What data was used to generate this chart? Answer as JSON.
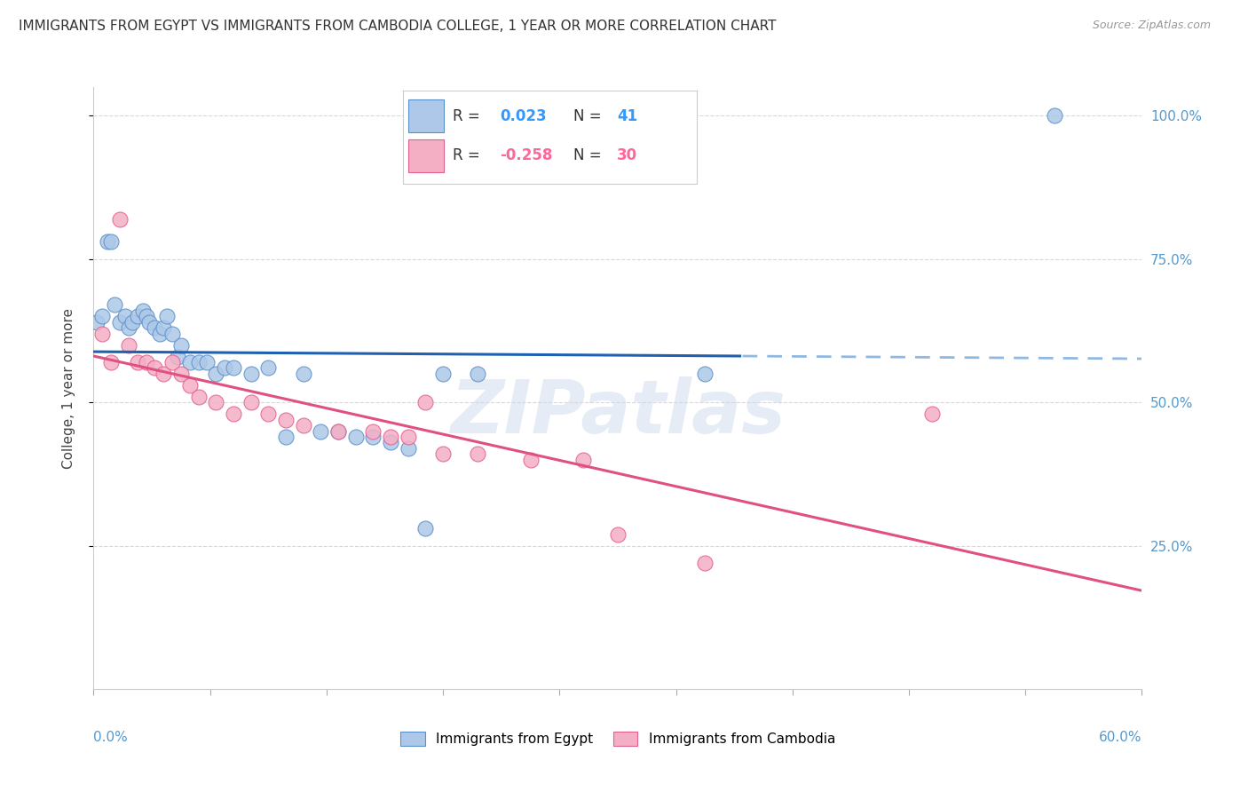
{
  "title": "IMMIGRANTS FROM EGYPT VS IMMIGRANTS FROM CAMBODIA COLLEGE, 1 YEAR OR MORE CORRELATION CHART",
  "source": "Source: ZipAtlas.com",
  "ylabel": "College, 1 year or more",
  "watermark": "ZIPatlas",
  "legend_egypt_R": "0.023",
  "legend_egypt_N": "41",
  "legend_cambodia_R": "-0.258",
  "legend_cambodia_N": "30",
  "egypt_x": [
    0.2,
    0.5,
    0.8,
    1.0,
    1.2,
    1.5,
    1.8,
    2.0,
    2.2,
    2.5,
    2.8,
    3.0,
    3.2,
    3.5,
    3.8,
    4.0,
    4.2,
    4.5,
    4.8,
    5.0,
    5.5,
    6.0,
    6.5,
    7.0,
    7.5,
    8.0,
    9.0,
    10.0,
    11.0,
    12.0,
    13.0,
    14.0,
    15.0,
    16.0,
    17.0,
    18.0,
    19.0,
    20.0,
    22.0,
    35.0,
    55.0
  ],
  "egypt_y": [
    64.0,
    65.0,
    78.0,
    78.0,
    67.0,
    64.0,
    65.0,
    63.0,
    64.0,
    65.0,
    66.0,
    65.0,
    64.0,
    63.0,
    62.0,
    63.0,
    65.0,
    62.0,
    58.0,
    60.0,
    57.0,
    57.0,
    57.0,
    55.0,
    56.0,
    56.0,
    55.0,
    56.0,
    44.0,
    55.0,
    45.0,
    45.0,
    44.0,
    44.0,
    43.0,
    42.0,
    28.0,
    55.0,
    55.0,
    55.0,
    100.0
  ],
  "cambodia_x": [
    0.5,
    1.0,
    1.5,
    2.0,
    2.5,
    3.0,
    3.5,
    4.0,
    4.5,
    5.0,
    5.5,
    6.0,
    7.0,
    8.0,
    9.0,
    10.0,
    11.0,
    12.0,
    14.0,
    16.0,
    17.0,
    18.0,
    19.0,
    20.0,
    22.0,
    25.0,
    28.0,
    30.0,
    35.0,
    48.0
  ],
  "cambodia_y": [
    62.0,
    57.0,
    82.0,
    60.0,
    57.0,
    57.0,
    56.0,
    55.0,
    57.0,
    55.0,
    53.0,
    51.0,
    50.0,
    48.0,
    50.0,
    48.0,
    47.0,
    46.0,
    45.0,
    45.0,
    44.0,
    44.0,
    50.0,
    41.0,
    41.0,
    40.0,
    40.0,
    27.0,
    22.0,
    48.0
  ],
  "egypt_color": "#adc8e8",
  "cambodia_color": "#f4afc4",
  "egypt_edge_color": "#5b8fc9",
  "cambodia_edge_color": "#e06090",
  "egypt_line_color": "#2060b0",
  "cambodia_line_color": "#e05080",
  "egypt_dash_color": "#90b8e0",
  "background_color": "#ffffff",
  "grid_color": "#d8d8d8",
  "title_color": "#333333",
  "right_axis_color": "#5599cc"
}
